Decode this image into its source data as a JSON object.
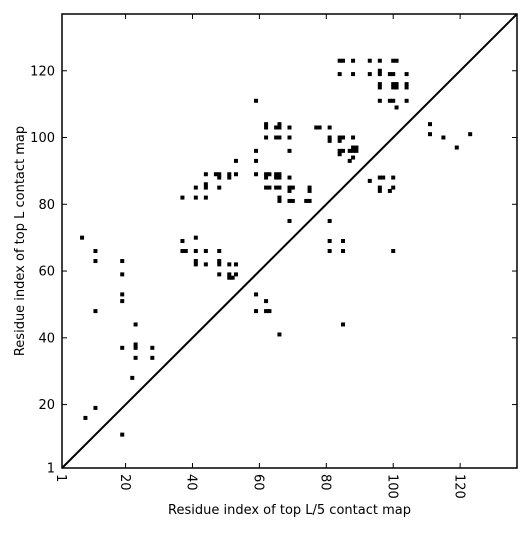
{
  "chart_data": {
    "type": "scatter",
    "title": "",
    "xlabel": "Residue index of top L/5 contact map",
    "ylabel": "Residue index of top L contact map",
    "xlim": [
      1,
      137
    ],
    "ylim": [
      1,
      137
    ],
    "x_ticks": [
      {
        "value": 1,
        "label": "1"
      },
      {
        "value": 20,
        "label": "20"
      },
      {
        "value": 40,
        "label": "40"
      },
      {
        "value": 60,
        "label": "60"
      },
      {
        "value": 80,
        "label": "80"
      },
      {
        "value": 100,
        "label": "100"
      },
      {
        "value": 120,
        "label": "120"
      }
    ],
    "y_ticks": [
      {
        "value": 1,
        "label": "1"
      },
      {
        "value": 20,
        "label": "20"
      },
      {
        "value": 40,
        "label": "40"
      },
      {
        "value": 60,
        "label": "60"
      },
      {
        "value": 80,
        "label": "80"
      },
      {
        "value": 100,
        "label": "100"
      },
      {
        "value": 120,
        "label": "120"
      }
    ],
    "grid": false,
    "diagonal": true,
    "marker_color": "#000000",
    "points": [
      [
        7,
        70
      ],
      [
        8,
        16
      ],
      [
        11,
        66
      ],
      [
        11,
        63
      ],
      [
        11,
        48
      ],
      [
        11,
        19
      ],
      [
        19,
        63
      ],
      [
        19,
        59
      ],
      [
        19,
        53
      ],
      [
        19,
        51
      ],
      [
        19,
        37
      ],
      [
        19,
        11
      ],
      [
        22,
        28
      ],
      [
        23,
        44
      ],
      [
        23,
        38
      ],
      [
        23,
        37
      ],
      [
        23,
        34
      ],
      [
        28,
        37
      ],
      [
        28,
        34
      ],
      [
        37,
        82
      ],
      [
        37,
        69
      ],
      [
        37,
        66
      ],
      [
        38,
        66
      ],
      [
        41,
        85
      ],
      [
        41,
        82
      ],
      [
        41,
        70
      ],
      [
        41,
        66
      ],
      [
        41,
        63
      ],
      [
        41,
        62
      ],
      [
        44,
        89
      ],
      [
        44,
        86
      ],
      [
        44,
        85
      ],
      [
        44,
        82
      ],
      [
        44,
        66
      ],
      [
        44,
        62
      ],
      [
        47,
        89
      ],
      [
        48,
        89
      ],
      [
        48,
        88
      ],
      [
        48,
        85
      ],
      [
        48,
        66
      ],
      [
        48,
        63
      ],
      [
        48,
        62
      ],
      [
        48,
        59
      ],
      [
        51,
        89
      ],
      [
        51,
        88
      ],
      [
        51,
        62
      ],
      [
        51,
        59
      ],
      [
        51,
        58
      ],
      [
        52,
        58
      ],
      [
        53,
        93
      ],
      [
        53,
        89
      ],
      [
        53,
        62
      ],
      [
        53,
        59
      ],
      [
        59,
        111
      ],
      [
        59,
        96
      ],
      [
        59,
        93
      ],
      [
        59,
        89
      ],
      [
        59,
        53
      ],
      [
        59,
        48
      ],
      [
        62,
        104
      ],
      [
        62,
        103
      ],
      [
        62,
        100
      ],
      [
        62,
        89
      ],
      [
        62,
        88
      ],
      [
        62,
        85
      ],
      [
        62,
        51
      ],
      [
        62,
        48
      ],
      [
        63,
        89
      ],
      [
        63,
        85
      ],
      [
        63,
        48
      ],
      [
        65,
        103
      ],
      [
        65,
        100
      ],
      [
        65,
        89
      ],
      [
        65,
        88
      ],
      [
        65,
        85
      ],
      [
        66,
        104
      ],
      [
        66,
        103
      ],
      [
        66,
        100
      ],
      [
        66,
        89
      ],
      [
        66,
        88
      ],
      [
        66,
        85
      ],
      [
        66,
        82
      ],
      [
        66,
        81
      ],
      [
        66,
        41
      ],
      [
        69,
        103
      ],
      [
        69,
        100
      ],
      [
        69,
        96
      ],
      [
        69,
        88
      ],
      [
        69,
        85
      ],
      [
        69,
        84
      ],
      [
        69,
        81
      ],
      [
        69,
        75
      ],
      [
        70,
        85
      ],
      [
        70,
        81
      ],
      [
        74,
        81
      ],
      [
        75,
        85
      ],
      [
        75,
        84
      ],
      [
        75,
        81
      ],
      [
        77,
        103
      ],
      [
        78,
        103
      ],
      [
        81,
        103
      ],
      [
        81,
        100
      ],
      [
        81,
        99
      ],
      [
        81,
        75
      ],
      [
        81,
        69
      ],
      [
        81,
        66
      ],
      [
        84,
        123
      ],
      [
        84,
        119
      ],
      [
        84,
        100
      ],
      [
        84,
        99
      ],
      [
        84,
        96
      ],
      [
        84,
        95
      ],
      [
        85,
        123
      ],
      [
        85,
        100
      ],
      [
        85,
        96
      ],
      [
        85,
        69
      ],
      [
        85,
        66
      ],
      [
        85,
        44
      ],
      [
        87,
        96
      ],
      [
        87,
        93
      ],
      [
        88,
        123
      ],
      [
        88,
        119
      ],
      [
        88,
        100
      ],
      [
        88,
        97
      ],
      [
        88,
        96
      ],
      [
        88,
        94
      ],
      [
        89,
        97
      ],
      [
        89,
        96
      ],
      [
        93,
        123
      ],
      [
        93,
        119
      ],
      [
        93,
        87
      ],
      [
        96,
        123
      ],
      [
        96,
        120
      ],
      [
        96,
        119
      ],
      [
        96,
        116
      ],
      [
        96,
        115
      ],
      [
        96,
        111
      ],
      [
        96,
        88
      ],
      [
        96,
        85
      ],
      [
        96,
        84
      ],
      [
        97,
        88
      ],
      [
        99,
        119
      ],
      [
        99,
        111
      ],
      [
        99,
        84
      ],
      [
        100,
        123
      ],
      [
        100,
        119
      ],
      [
        100,
        116
      ],
      [
        100,
        115
      ],
      [
        100,
        111
      ],
      [
        100,
        88
      ],
      [
        100,
        85
      ],
      [
        100,
        66
      ],
      [
        101,
        123
      ],
      [
        101,
        116
      ],
      [
        101,
        115
      ],
      [
        101,
        109
      ],
      [
        104,
        119
      ],
      [
        104,
        116
      ],
      [
        104,
        115
      ],
      [
        104,
        111
      ],
      [
        111,
        104
      ],
      [
        111,
        101
      ],
      [
        115,
        100
      ],
      [
        119,
        97
      ],
      [
        123,
        101
      ]
    ]
  }
}
